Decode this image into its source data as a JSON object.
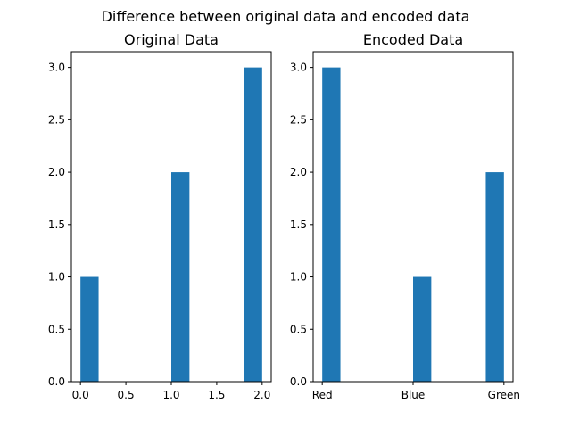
{
  "figure": {
    "suptitle": "Difference between original data and encoded data"
  },
  "chart_data": [
    {
      "type": "bar",
      "title": "Original Data",
      "xlabel": "",
      "ylabel": "",
      "bar_color": "#1f77b4",
      "bin_width": 0.2,
      "bars": [
        {
          "x": 0.1,
          "value": 1
        },
        {
          "x": 1.1,
          "value": 2
        },
        {
          "x": 1.9,
          "value": 3
        }
      ],
      "xlim": [
        -0.1,
        2.1
      ],
      "ylim": [
        0,
        3.15
      ],
      "xticks": [
        {
          "value": 0.0,
          "label": "0.0"
        },
        {
          "value": 0.5,
          "label": "0.5"
        },
        {
          "value": 1.0,
          "label": "1.0"
        },
        {
          "value": 1.5,
          "label": "1.5"
        },
        {
          "value": 2.0,
          "label": "2.0"
        }
      ],
      "yticks": [
        {
          "value": 0.0,
          "label": "0.0"
        },
        {
          "value": 0.5,
          "label": "0.5"
        },
        {
          "value": 1.0,
          "label": "1.0"
        },
        {
          "value": 1.5,
          "label": "1.5"
        },
        {
          "value": 2.0,
          "label": "2.0"
        },
        {
          "value": 2.5,
          "label": "2.5"
        },
        {
          "value": 3.0,
          "label": "3.0"
        }
      ],
      "grid": false,
      "legend": "none"
    },
    {
      "type": "bar",
      "title": "Encoded Data",
      "xlabel": "",
      "ylabel": "",
      "bar_color": "#1f77b4",
      "bin_width": 0.2,
      "bars": [
        {
          "x": 0.1,
          "value": 3
        },
        {
          "x": 1.1,
          "value": 1
        },
        {
          "x": 1.9,
          "value": 2
        }
      ],
      "xlim": [
        -0.1,
        2.1
      ],
      "ylim": [
        0,
        3.15
      ],
      "xticks": [
        {
          "value": 0,
          "label": "Red"
        },
        {
          "value": 1,
          "label": "Blue"
        },
        {
          "value": 2,
          "label": "Green"
        }
      ],
      "yticks": [
        {
          "value": 0.0,
          "label": "0.0"
        },
        {
          "value": 0.5,
          "label": "0.5"
        },
        {
          "value": 1.0,
          "label": "1.0"
        },
        {
          "value": 1.5,
          "label": "1.5"
        },
        {
          "value": 2.0,
          "label": "2.0"
        },
        {
          "value": 2.5,
          "label": "2.5"
        },
        {
          "value": 3.0,
          "label": "3.0"
        }
      ],
      "grid": false,
      "legend": "none"
    }
  ]
}
